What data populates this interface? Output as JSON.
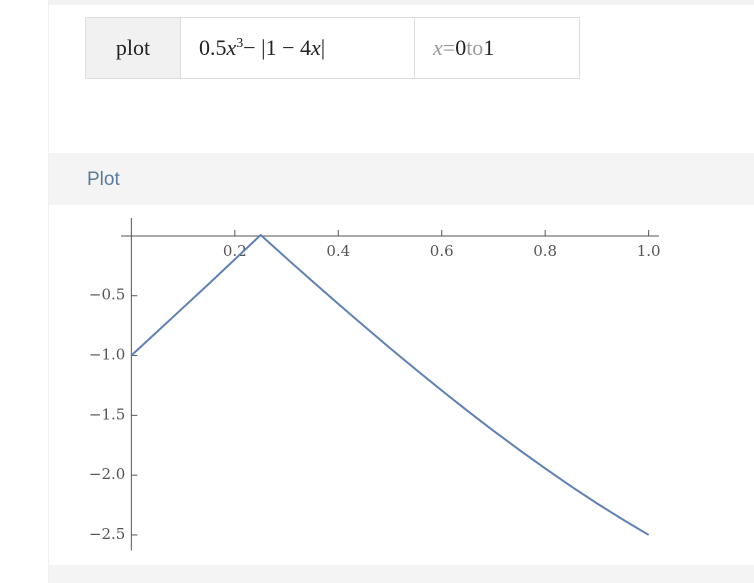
{
  "input": {
    "command": "plot",
    "formula": {
      "coef": "0.5",
      "var": "x",
      "exponent": "3",
      "rest": "− |1 − 4",
      "var2": "x",
      "close": "|"
    },
    "range": {
      "var": "x",
      "eq": "=",
      "from": "0",
      "to": "to",
      "end": "1"
    }
  },
  "pod": {
    "title": "Plot"
  },
  "chart_data": {
    "type": "line",
    "x": [
      0,
      0.05,
      0.1,
      0.15,
      0.2,
      0.25,
      0.3,
      0.35,
      0.4,
      0.45,
      0.5,
      0.55,
      0.6,
      0.65,
      0.7,
      0.75,
      0.8,
      0.85,
      0.9,
      0.95,
      1
    ],
    "series": [
      {
        "color": "#5e81b5",
        "values": [
          -1,
          -0.8,
          -0.6,
          -0.4,
          -0.196,
          0.008,
          -0.187,
          -0.379,
          -0.568,
          -0.754,
          -0.938,
          -1.117,
          -1.292,
          -1.463,
          -1.629,
          -1.789,
          -1.944,
          -2.093,
          -2.236,
          -2.371,
          -2.5
        ]
      }
    ],
    "xlim": [
      -0.02,
      1.02
    ],
    "ylim": [
      -2.63,
      0.15
    ],
    "xticks": [
      0.2,
      0.4,
      0.6,
      0.8,
      {
        "value": 1,
        "label": "1.0"
      }
    ],
    "yticks": [
      {
        "value": -0.5,
        "label": "−0.5"
      },
      {
        "value": -1,
        "label": "−1.0"
      },
      {
        "value": -1.5,
        "label": "−1.5"
      },
      {
        "value": -2,
        "label": "−2.0"
      },
      {
        "value": -2.5,
        "label": "−2.5"
      }
    ]
  }
}
